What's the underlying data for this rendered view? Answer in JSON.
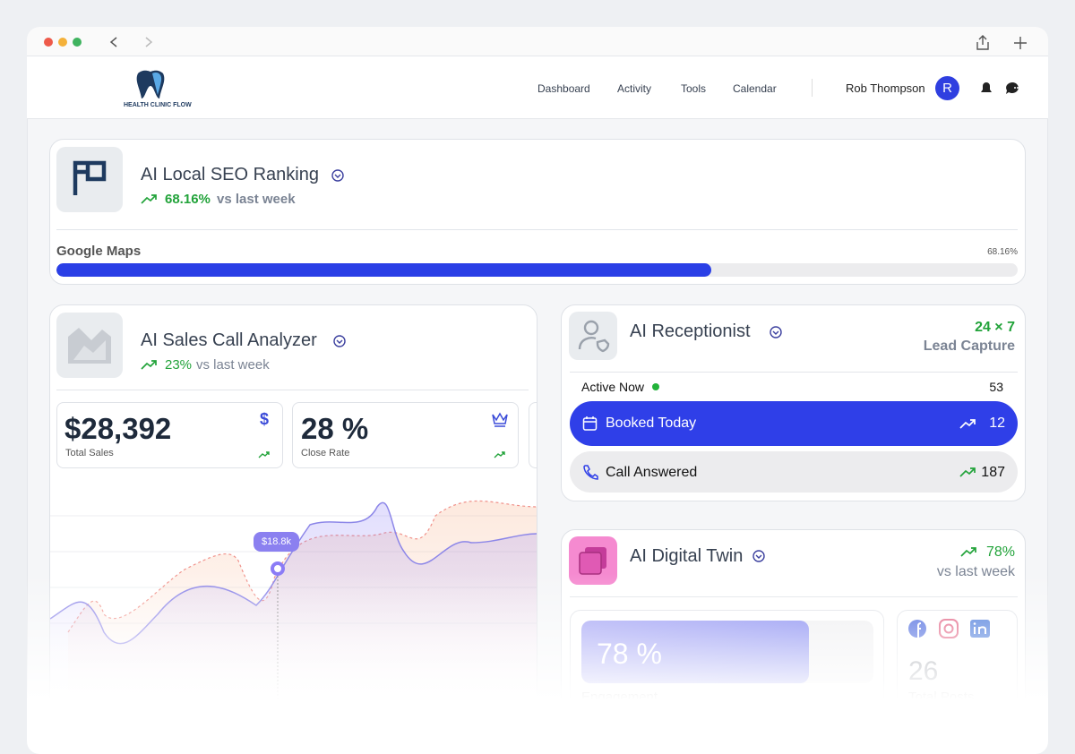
{
  "header": {
    "logo": "HEALTH CLINIC FLOW",
    "nav": [
      "Dashboard",
      "Activity",
      "Tools",
      "Calendar"
    ],
    "user": "Rob Thompson",
    "avatar": "R"
  },
  "seo": {
    "title": "AI Local SEO Ranking",
    "change": "68.16%",
    "change_note": "vs last week",
    "source": "Google Maps",
    "progress": {
      "value": 68.16,
      "label": "68.16%"
    }
  },
  "sales": {
    "title": "AI Sales Call Analyzer",
    "change": "23%",
    "change_note": "vs last week",
    "stats": [
      {
        "value": "$28,392",
        "label": "Total Sales",
        "icon": "$"
      },
      {
        "value": "28 %",
        "label": "Close Rate"
      }
    ],
    "tooltip": "$18.8k"
  },
  "receptionist": {
    "title": "AI Receptionist",
    "badge": "24 × 7",
    "badge_note": "Lead Capture",
    "rows": [
      {
        "label": "Active Now",
        "value": "53"
      },
      {
        "label": "Booked Today",
        "value": "12"
      },
      {
        "label": "Call Answered",
        "value": "187"
      }
    ]
  },
  "twin": {
    "title": "AI Digital Twin",
    "change": "78%",
    "change_note": "vs last week",
    "engagement": {
      "value": 78,
      "label": "78 %"
    },
    "engagement_label": "Engagement",
    "posts": "26",
    "posts_label": "Total Posts"
  }
}
